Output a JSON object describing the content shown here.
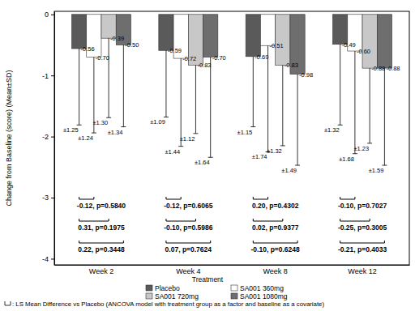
{
  "chart_data": {
    "type": "bar",
    "y_label": "Change from Baseline (score) (Mean±SD)",
    "legend_title": "Treatment",
    "footnote": ": LS Mean Difference vs Placebo (ANCOVA model with treatment group as a factor and baseline as a covariate)",
    "categories": [
      "Week 2",
      "Week 4",
      "Week 8",
      "Week 12"
    ],
    "ylim": [
      -4.1,
      0.05
    ],
    "yticks": [
      0,
      -1,
      -2,
      -3,
      -4
    ],
    "data_labels": true,
    "series": [
      {
        "name": "Placebo",
        "color": "#5a5a5a",
        "values": [
          -0.56,
          -0.59,
          -0.69,
          -0.49
        ],
        "value_labels": [
          "-0.56",
          "-0.59",
          "-0.69",
          "-0.49"
        ],
        "errors": [
          1.25,
          1.09,
          1.15,
          1.32
        ],
        "error_labels": [
          "±1.25",
          "±1.09",
          "±1.15",
          "±1.32"
        ]
      },
      {
        "name": "SA001 360mg",
        "color": "#ffffff",
        "values": [
          -0.7,
          -0.72,
          -0.51,
          -0.6
        ],
        "value_labels": [
          "-0.70",
          "-0.72",
          "-0.51",
          "-0.60"
        ],
        "errors": [
          1.24,
          1.44,
          1.74,
          1.68
        ],
        "error_labels": [
          "±1.24",
          "±1.44",
          "±1.74",
          "±1.68"
        ],
        "comparison_labels": [
          "-0.12, p=0.5840",
          "-0.12, p=0.6065",
          "0.20, p=0.4302",
          "-0.10, p=0.7027"
        ]
      },
      {
        "name": "SA001 720mg",
        "color": "#c8c8c8",
        "values": [
          -0.39,
          -0.83,
          -0.83,
          -0.88
        ],
        "value_labels": [
          "-0.39",
          "-0.83",
          "-0.83",
          "-0.88"
        ],
        "errors": [
          1.3,
          1.12,
          1.32,
          1.23
        ],
        "error_labels": [
          "±1.30",
          "±1.12",
          "±1.32",
          "±1.23"
        ],
        "comparison_labels": [
          "0.31, p=0.1975",
          "-0.10, p=0.5986",
          "0.02, p=0.9377",
          "-0.25, p=0.3005"
        ]
      },
      {
        "name": "SA001 1080mg",
        "color": "#6e6e6e",
        "values": [
          -0.5,
          -0.7,
          -0.98,
          -0.88
        ],
        "value_labels": [
          "-0.50",
          "-0.70",
          "-0.98",
          "-0.88"
        ],
        "errors": [
          1.34,
          1.64,
          1.49,
          1.59
        ],
        "error_labels": [
          "±1.34",
          "±1.64",
          "±1.49",
          "±1.59"
        ],
        "comparison_labels": [
          "0.22, p=0.3448",
          "0.07, p=0.7624",
          "-0.10, p=0.6248",
          "-0.21, p=0.4033"
        ]
      }
    ]
  }
}
